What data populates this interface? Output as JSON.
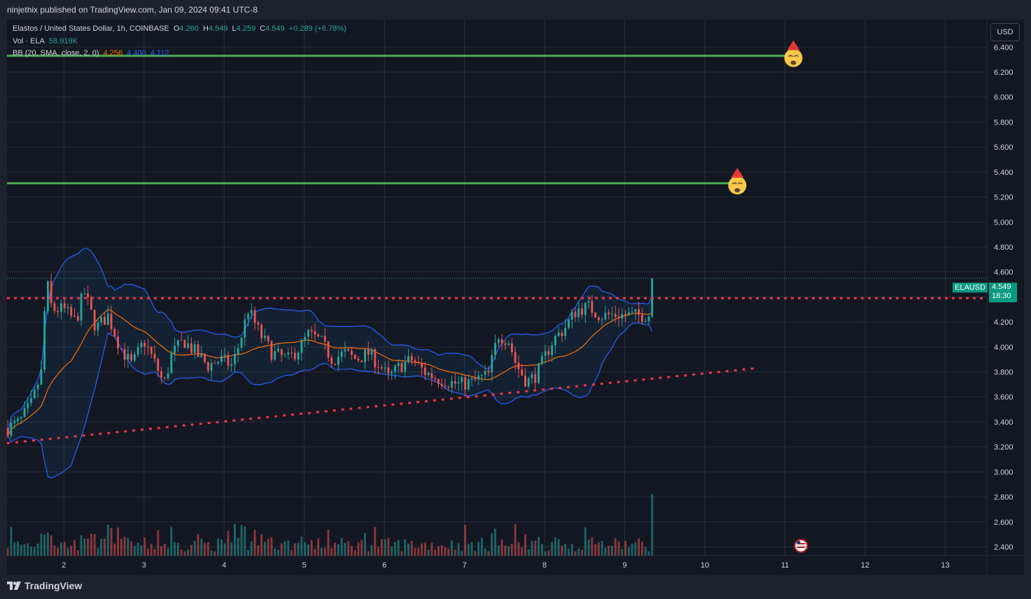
{
  "header": {
    "published": "ninjethix published on TradingView.com, Jan 09, 2024 09:41 UTC-8"
  },
  "legend": {
    "symbol": "Elastos / United States Dollar, 1h, COINBASE",
    "o_label": "O",
    "o_value": "4.260",
    "h_label": "H",
    "h_value": "4.549",
    "l_label": "L",
    "l_value": "4.259",
    "c_label": "C",
    "c_value": "4.549",
    "change": "+0.289 (+6.78%)",
    "vol_label": "Vol · ELA",
    "vol_value": "58.919K",
    "bb_label": "BB (20, SMA, close, 2, 0)",
    "bb_basis": "4.256",
    "bb_upper": "4.400",
    "bb_lower": "4.112"
  },
  "currency_button": "USD",
  "last_price": {
    "symbol": "ELAUSD",
    "price": "4.549",
    "countdown": "18:30"
  },
  "footer": {
    "brand": "TradingView"
  },
  "colors": {
    "background": "#131722",
    "up": "#26a69a",
    "down": "#ef5350",
    "bb_band": "#2962ff",
    "bb_basis": "#ff6d00",
    "green_line": "#4caf50",
    "red_dotted": "#f23645"
  },
  "chart_data": {
    "type": "candlestick",
    "y_ticks": [
      "6.400",
      "6.200",
      "6.000",
      "5.800",
      "5.600",
      "5.400",
      "5.200",
      "5.000",
      "4.800",
      "4.600",
      "4.400",
      "4.200",
      "4.000",
      "3.800",
      "3.600",
      "3.400",
      "3.200",
      "3.000",
      "2.800",
      "2.600",
      "2.400"
    ],
    "ylim": [
      2.33,
      6.62
    ],
    "x_ticks": [
      "2",
      "3",
      "4",
      "5",
      "6",
      "7",
      "8",
      "9",
      "10",
      "11",
      "12",
      "13"
    ],
    "x_tick_days": [
      2,
      3,
      4,
      5,
      6,
      7,
      8,
      9,
      10,
      11,
      12,
      13
    ],
    "xlim": [
      1.29,
      13.52
    ],
    "keypoints": [
      [
        1.3,
        3.35
      ],
      [
        1.45,
        3.4
      ],
      [
        1.6,
        3.55
      ],
      [
        1.72,
        3.8
      ],
      [
        1.78,
        4.55
      ],
      [
        1.85,
        4.3
      ],
      [
        2.0,
        4.3
      ],
      [
        2.15,
        4.2
      ],
      [
        2.25,
        4.45
      ],
      [
        2.4,
        4.15
      ],
      [
        2.55,
        4.25
      ],
      [
        2.7,
        4.0
      ],
      [
        2.85,
        3.85
      ],
      [
        3.0,
        4.05
      ],
      [
        3.15,
        3.85
      ],
      [
        3.25,
        3.7
      ],
      [
        3.35,
        3.95
      ],
      [
        3.5,
        4.05
      ],
      [
        3.65,
        3.95
      ],
      [
        3.8,
        3.85
      ],
      [
        3.95,
        3.9
      ],
      [
        4.1,
        3.85
      ],
      [
        4.2,
        4.05
      ],
      [
        4.3,
        4.3
      ],
      [
        4.45,
        4.1
      ],
      [
        4.6,
        3.95
      ],
      [
        4.8,
        3.9
      ],
      [
        4.95,
        4.0
      ],
      [
        5.05,
        4.1
      ],
      [
        5.2,
        4.05
      ],
      [
        5.35,
        3.9
      ],
      [
        5.5,
        3.95
      ],
      [
        5.65,
        3.9
      ],
      [
        5.8,
        3.95
      ],
      [
        5.95,
        3.85
      ],
      [
        6.05,
        3.75
      ],
      [
        6.2,
        3.85
      ],
      [
        6.35,
        3.9
      ],
      [
        6.5,
        3.8
      ],
      [
        6.65,
        3.75
      ],
      [
        6.8,
        3.72
      ],
      [
        6.95,
        3.7
      ],
      [
        7.1,
        3.72
      ],
      [
        7.3,
        3.78
      ],
      [
        7.42,
        4.1
      ],
      [
        7.55,
        4.05
      ],
      [
        7.65,
        3.85
      ],
      [
        7.78,
        3.72
      ],
      [
        7.9,
        3.78
      ],
      [
        8.1,
        4.05
      ],
      [
        8.25,
        4.15
      ],
      [
        8.4,
        4.3
      ],
      [
        8.55,
        4.32
      ],
      [
        8.7,
        4.25
      ],
      [
        8.9,
        4.26
      ],
      [
        9.1,
        4.25
      ],
      [
        9.33,
        4.26
      ]
    ],
    "last_close": 4.549,
    "green_lines": [
      {
        "price": 6.33,
        "x_end": 11.0
      },
      {
        "price": 5.31,
        "x_end": 10.3
      }
    ],
    "red_horizontal": {
      "price": 4.39
    },
    "red_trendline": {
      "x0": 1.29,
      "y0": 3.23,
      "x1": 10.65,
      "y1": 3.83
    },
    "calendar_icon_day": 11.2,
    "last_price_line": 4.549
  }
}
